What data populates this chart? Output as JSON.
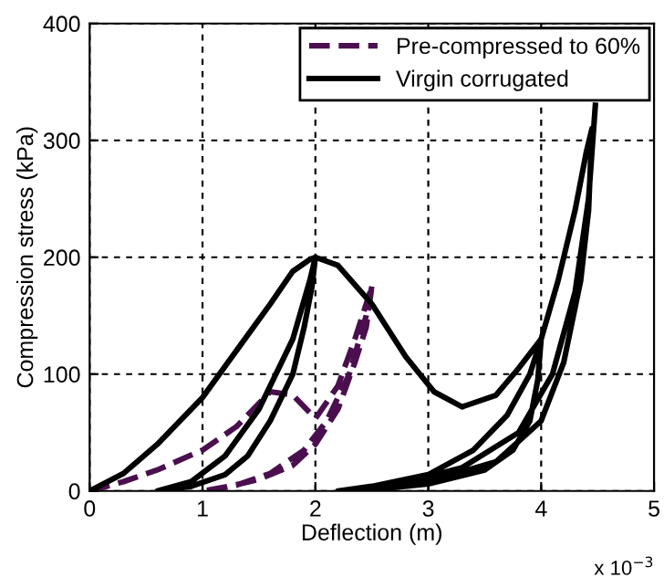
{
  "chart_data": {
    "type": "line",
    "xlabel": "Deflection (m)",
    "ylabel": "Compression stress (kPa)",
    "annotations": [
      "x 10$^{−3}$"
    ],
    "xlim": [
      0,
      5
    ],
    "ylim": [
      0,
      400
    ],
    "xticks": [
      0,
      1,
      2,
      3,
      4,
      5
    ],
    "yticks": [
      0,
      100,
      200,
      300,
      400
    ],
    "grid": true,
    "legend": "top right",
    "marker": "none",
    "series": [
      {
        "name": "Pre-compressed to 60%",
        "color": "#4b0f4f",
        "line_style": "dashed",
        "x": [
          0,
          0.3,
          0.6,
          1.0,
          1.3,
          1.6,
          1.8,
          2.0,
          2.2,
          2.35,
          2.5,
          2.45,
          2.35,
          2.2,
          2.0,
          1.8,
          1.5,
          1.2,
          1.0,
          1.3,
          1.6,
          1.9,
          2.1,
          2.3,
          2.45,
          2.5
        ],
        "values": [
          0,
          8,
          18,
          35,
          55,
          85,
          82,
          62,
          90,
          130,
          175,
          140,
          110,
          70,
          40,
          22,
          10,
          3,
          0,
          5,
          15,
          35,
          60,
          100,
          150,
          175
        ]
      },
      {
        "name": "Virgin corrugated",
        "color": "#000000",
        "line_style": "solid",
        "x": [
          0,
          0.3,
          0.6,
          1.0,
          1.3,
          1.6,
          1.8,
          1.95,
          2.0,
          1.97,
          1.9,
          1.8,
          1.6,
          1.4,
          1.2,
          0.9,
          0.6,
          0.9,
          1.2,
          1.5,
          1.8,
          1.95,
          2.0,
          2.2,
          2.5,
          2.8,
          3.05,
          3.3,
          3.6,
          3.8,
          4.0,
          3.97,
          3.9,
          3.75,
          3.5,
          3.0,
          2.5,
          2.2,
          2.5,
          3.0,
          3.4,
          3.7,
          3.9,
          4.0,
          4.15,
          4.3,
          4.4,
          4.45,
          4.42,
          4.35,
          4.2,
          4.0,
          3.6,
          3.0,
          2.5,
          2.2,
          2.7,
          3.3,
          3.8,
          4.1,
          4.3,
          4.42,
          4.48
        ],
        "values": [
          0,
          15,
          40,
          80,
          120,
          160,
          188,
          198,
          200,
          175,
          140,
          100,
          60,
          30,
          14,
          4,
          0,
          8,
          30,
          70,
          130,
          180,
          200,
          193,
          160,
          115,
          85,
          72,
          82,
          105,
          130,
          95,
          60,
          35,
          18,
          6,
          1,
          0,
          4,
          14,
          35,
          65,
          100,
          130,
          180,
          240,
          290,
          310,
          240,
          180,
          110,
          60,
          25,
          8,
          2,
          0,
          5,
          20,
          50,
          100,
          170,
          250,
          330
        ]
      }
    ]
  }
}
